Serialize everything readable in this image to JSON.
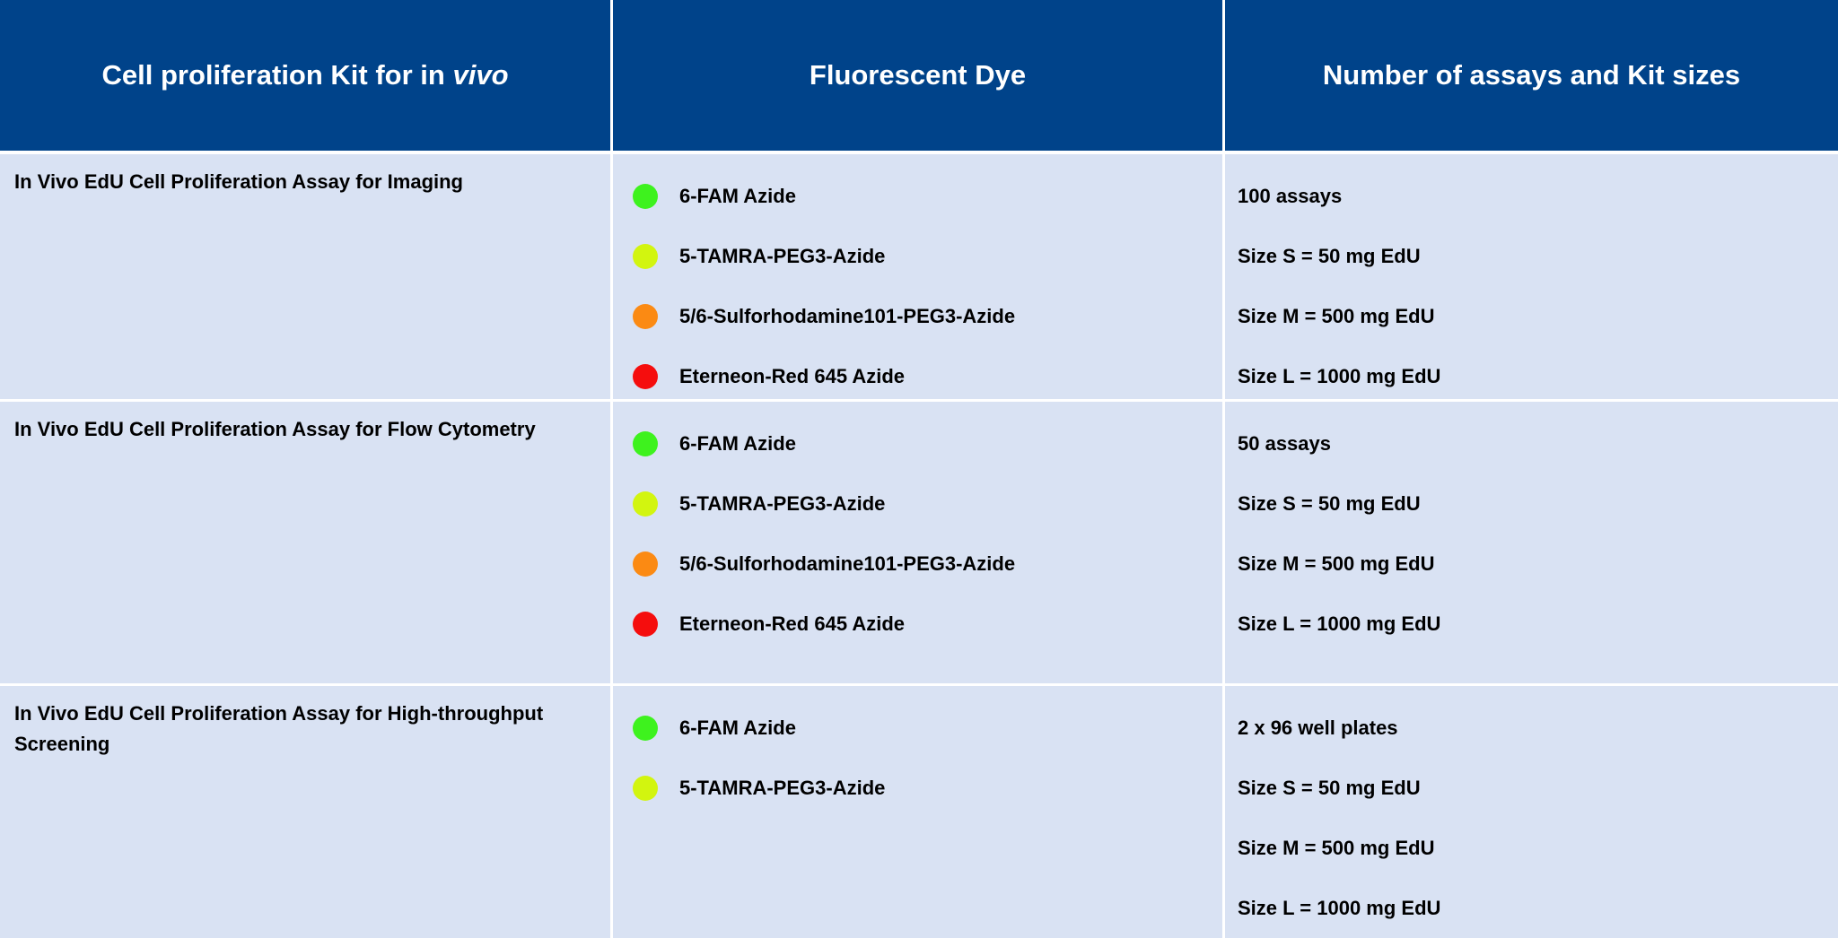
{
  "table": {
    "headers": [
      {
        "text": "Cell proliferation Kit for in",
        "emphasis": "vivo"
      },
      {
        "text": "Fluorescent Dye"
      },
      {
        "text": "Number of assays and Kit sizes"
      }
    ],
    "rows": [
      {
        "kit": "In Vivo EdU Cell Proliferation Assay for Imaging",
        "dyes": [
          {
            "name": "6-FAM Azide",
            "color": "#3ef21e"
          },
          {
            "name": "5-TAMRA-PEG3-Azide",
            "color": "#d2f50f"
          },
          {
            "name": "5/6-Sulforhodamine101-PEG3-Azide",
            "color": "#fb8a13"
          },
          {
            "name": "Eterneon-Red 645 Azide",
            "color": "#f50d0d"
          }
        ],
        "sizes": [
          "100 assays",
          "Size S = 50 mg EdU",
          "Size M = 500 mg EdU",
          "Size L = 1000 mg EdU"
        ]
      },
      {
        "kit": "In Vivo EdU Cell Proliferation Assay for Flow Cytometry",
        "dyes": [
          {
            "name": "6-FAM Azide",
            "color": "#3ef21e"
          },
          {
            "name": "5-TAMRA-PEG3-Azide",
            "color": "#d2f50f"
          },
          {
            "name": "5/6-Sulforhodamine101-PEG3-Azide",
            "color": "#fb8a13"
          },
          {
            "name": "Eterneon-Red 645 Azide",
            "color": "#f50d0d"
          }
        ],
        "sizes": [
          "50 assays",
          "Size S = 50 mg EdU",
          "Size M = 500 mg EdU",
          "Size L = 1000 mg EdU"
        ]
      },
      {
        "kit": "In Vivo EdU Cell Proliferation Assay for High-throughput Screening",
        "dyes": [
          {
            "name": "6-FAM Azide",
            "color": "#3ef21e"
          },
          {
            "name": "5-TAMRA-PEG3-Azide",
            "color": "#d2f50f"
          }
        ],
        "sizes": [
          "2 x 96 well plates",
          "Size S = 50 mg EdU",
          "Size M = 500 mg EdU",
          "Size L = 1000 mg EdU"
        ]
      }
    ]
  }
}
